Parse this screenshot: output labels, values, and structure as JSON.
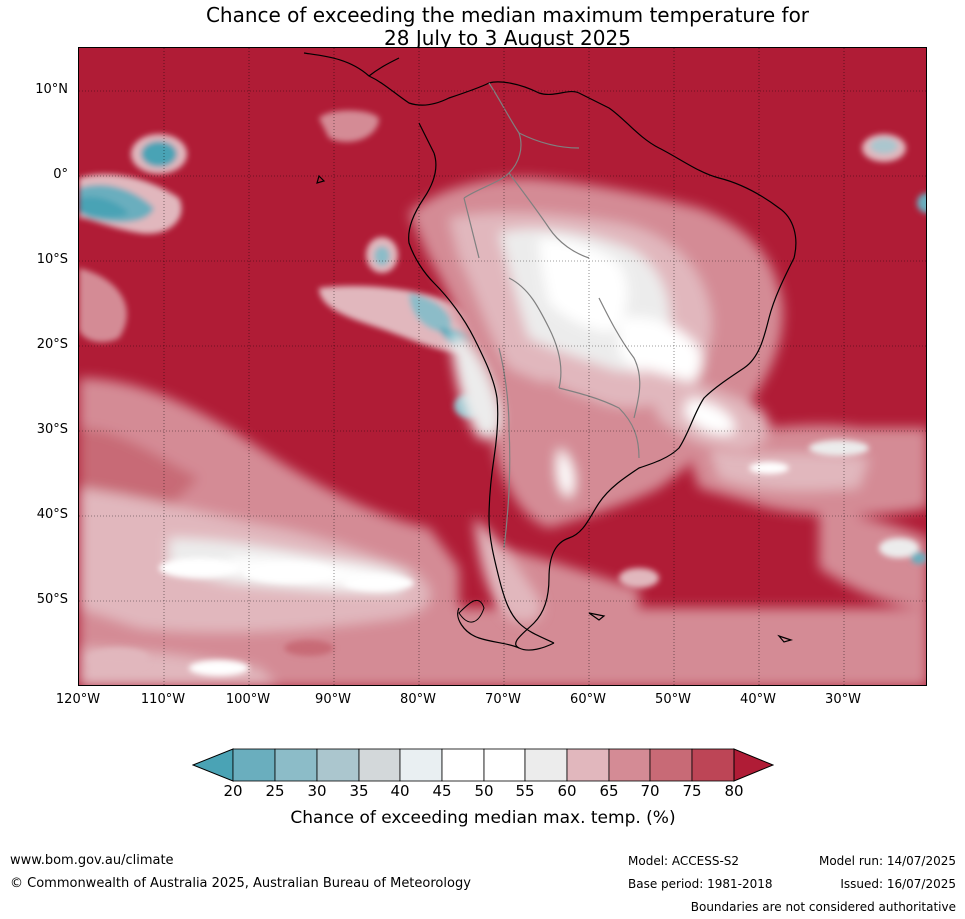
{
  "header": {
    "title_line1": "Chance of exceeding the median maximum temperature for",
    "title_line2": "28 July to 3 August 2025"
  },
  "map": {
    "latitude_labels": [
      "10°N",
      "0°",
      "10°S",
      "20°S",
      "30°S",
      "40°S",
      "50°S"
    ],
    "longitude_labels": [
      "120°W",
      "110°W",
      "100°W",
      "90°W",
      "80°W",
      "70°W",
      "60°W",
      "50°W",
      "40°W",
      "30°W"
    ]
  },
  "legend": {
    "ticks": [
      "20",
      "25",
      "30",
      "35",
      "40",
      "45",
      "50",
      "55",
      "60",
      "65",
      "70",
      "75",
      "80"
    ],
    "colors": [
      "#4aa3b5",
      "#6aaebe",
      "#8cbcc8",
      "#abc6ce",
      "#d3d8da",
      "#e9eff2",
      "#ffffff",
      "#ffffff",
      "#ececec",
      "#e1b7bd",
      "#d48b95",
      "#c86a76",
      "#bd4556",
      "#b01c36"
    ],
    "label": "Chance of exceeding median max. temp. (%)"
  },
  "footer": {
    "website": "www.bom.gov.au/climate",
    "copyright": "© Commonwealth of Australia 2025, Australian Bureau of Meteorology",
    "model": "Model: ACCESS-S2",
    "base_period": "Base period: 1981-2018",
    "model_run": "Model run: 14/07/2025",
    "issued": "Issued: 16/07/2025",
    "disclaimer": "Boundaries are not considered authoritative"
  }
}
